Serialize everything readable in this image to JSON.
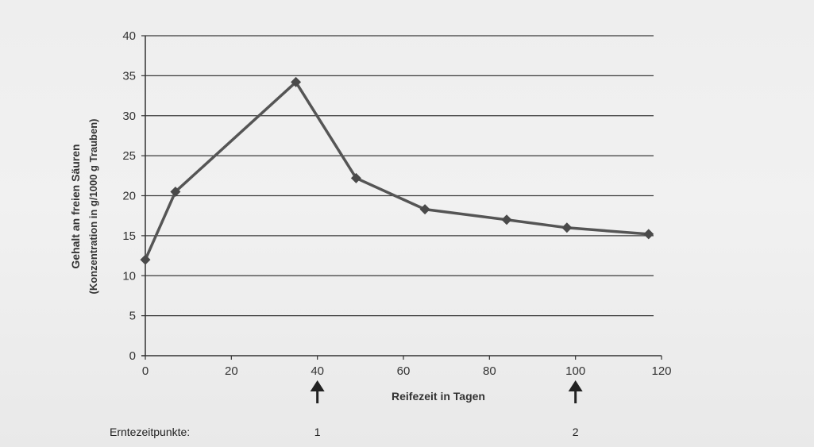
{
  "chart_data": {
    "type": "line",
    "title": "",
    "xlabel": "Reifezeit in Tagen",
    "ylabel": "Gehalt an freien Säuren",
    "ylabel_sub": "(Konzentration in g/1000 g Trauben)",
    "x_ticks": [
      0,
      20,
      40,
      60,
      80,
      100,
      120
    ],
    "y_ticks": [
      0,
      5,
      10,
      15,
      20,
      25,
      30,
      35,
      40
    ],
    "xlim": [
      0,
      120
    ],
    "ylim": [
      0,
      40
    ],
    "grid": "horizontal",
    "legend": "none",
    "line_color": "#555555",
    "series": [
      {
        "x": [
          0,
          7,
          35,
          49,
          65,
          84,
          98,
          117
        ],
        "y": [
          12,
          20.5,
          34.2,
          22.2,
          18.3,
          17,
          16,
          15.2
        ]
      }
    ],
    "harvest": {
      "label": "Erntezeitpunkte:",
      "points": [
        {
          "x": 40,
          "label": "1"
        },
        {
          "x": 100,
          "label": "2"
        }
      ]
    }
  }
}
